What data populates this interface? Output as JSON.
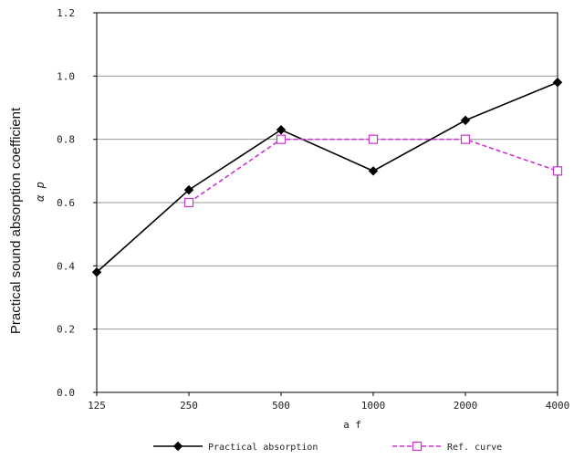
{
  "chart_data": {
    "type": "line",
    "ylabel": "Practical sound absorption coefficient",
    "ysymbol": "α p",
    "xlabel": "a f",
    "categories": [
      "125",
      "250",
      "500",
      "1000",
      "2000",
      "4000"
    ],
    "yticks": [
      "0.0",
      "0.2",
      "0.4",
      "0.6",
      "0.8",
      "1.0",
      "1.2"
    ],
    "ylim": [
      0,
      1.2
    ],
    "grid": true,
    "legend_position": "bottom",
    "series": [
      {
        "name": "Practical absorption",
        "color": "#000000",
        "marker": "diamond",
        "line_style": "solid",
        "values": [
          0.38,
          0.64,
          0.83,
          0.7,
          0.86,
          0.98
        ]
      },
      {
        "name": "Ref. curve",
        "color": "#cc33cc",
        "marker": "square",
        "line_style": "dashed",
        "values": [
          null,
          0.6,
          0.8,
          0.8,
          0.8,
          0.7
        ]
      }
    ]
  }
}
